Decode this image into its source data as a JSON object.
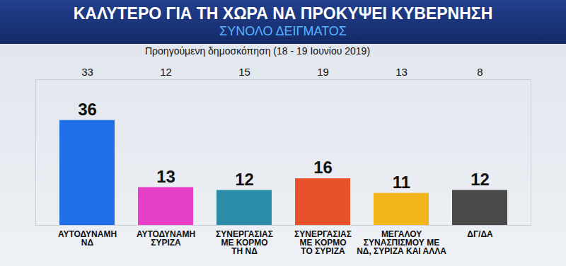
{
  "chart_data": {
    "type": "bar",
    "title": "ΚΑΛΥΤΕΡΟ ΓΙΑ ΤΗ ΧΩΡΑ ΝΑ ΠΡΟΚΥΨΕΙ ΚΥΒΕΡΝΗΣΗ",
    "subtitle": "ΣΥΝΟΛΟ ΔΕΙΓΜΑΤΟΣ",
    "categories": [
      "ΑΥΤΟΔΥΝΑΜΗ\nΝΔ",
      "ΑΥΤΟΔΥΝΑΜΗ\nΣΥΡΙΖΑ",
      "ΣΥΝΕΡΓΑΣΙΑΣ\nΜΕ ΚΟΡΜΟ\nΤΗ ΝΔ",
      "ΣΥΝΕΡΓΑΣΙΑΣ\nΜΕ ΚΟΡΜΟ\nΤΟ ΣΥΡΙΖΑ",
      "ΜΕΓΑΛΟΥ\nΣΥΝΑΣΠΙΣΜΟΥ ΜΕ\nΝΔ, ΣΥΡΙΖΑ ΚΑΙ ΑΛΛΑ",
      "ΔΓ/ΔΑ"
    ],
    "values": [
      36,
      13,
      12,
      16,
      11,
      12
    ],
    "colors": [
      "#1f6fe6",
      "#e63fc8",
      "#2a8ca6",
      "#e8522b",
      "#f2b51c",
      "#4a4a4a"
    ],
    "previous_label": "Προηγούμενη δημοσκόπηση (18 - 19 Ιουνίου 2019)",
    "previous_values": [
      33,
      12,
      15,
      19,
      13,
      8
    ],
    "ylim": [
      0,
      50
    ],
    "yticks": [],
    "data_labels": true,
    "tick_labels": "x",
    "grid": false
  }
}
